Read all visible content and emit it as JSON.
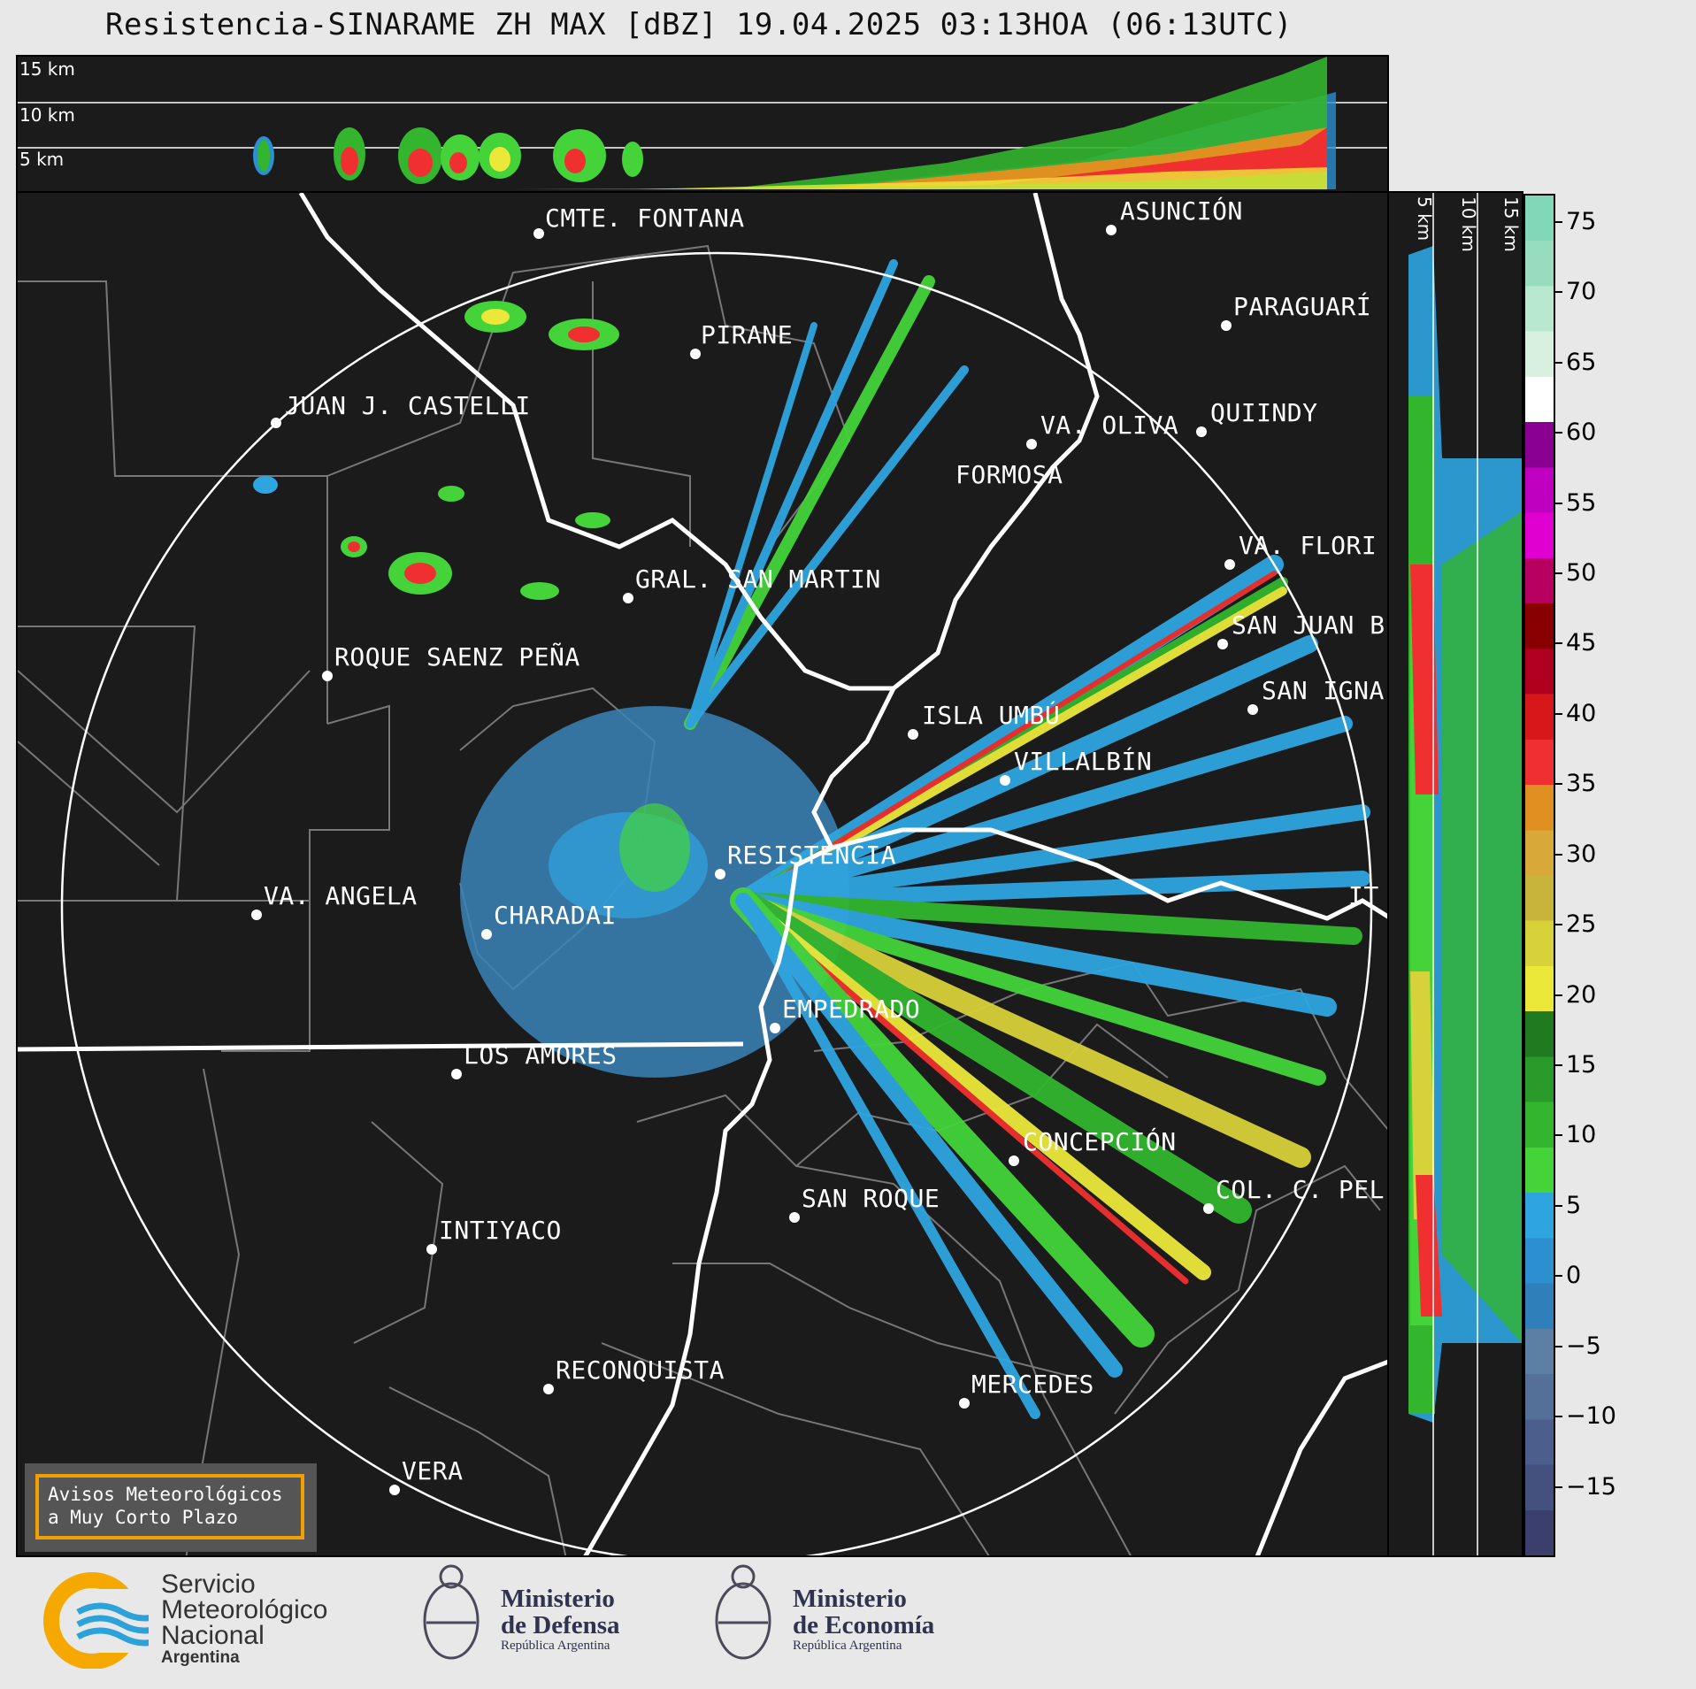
{
  "title": "Resistencia-SINARAME ZH MAX [dBZ] 19.04.2025 03:13HOA (06:13UTC)",
  "top_panel": {
    "altitudes": [
      "15 km",
      "10 km",
      "5 km"
    ]
  },
  "side_panel": {
    "altitudes": [
      "5 km",
      "10 km",
      "15 km"
    ]
  },
  "cities": [
    {
      "name": "CMTE. FONTANA"
    },
    {
      "name": "ASUNCIÓN"
    },
    {
      "name": "PARAGUARÍ"
    },
    {
      "name": "PIRANE"
    },
    {
      "name": "JUAN J. CASTELLI"
    },
    {
      "name": "VA. OLIVA"
    },
    {
      "name": "QUIINDY"
    },
    {
      "name": "FORMOSA"
    },
    {
      "name": "VA. FLORI"
    },
    {
      "name": "GRAL. SAN MARTIN"
    },
    {
      "name": "SAN JUAN B"
    },
    {
      "name": "ROQUE SAENZ PEÑA"
    },
    {
      "name": "SAN IGNA"
    },
    {
      "name": "ISLA UMBÚ"
    },
    {
      "name": "VILLALBÍN"
    },
    {
      "name": "RESISTENCIA"
    },
    {
      "name": "VA. ANGELA"
    },
    {
      "name": "CHARADAI"
    },
    {
      "name": "IT"
    },
    {
      "name": "EMPEDRADO"
    },
    {
      "name": "LOS AMORES"
    },
    {
      "name": "CONCEPCIÓN"
    },
    {
      "name": "SAN ROQUE"
    },
    {
      "name": "COL. C. PEL"
    },
    {
      "name": "INTIYACO"
    },
    {
      "name": "RECONQUISTA"
    },
    {
      "name": "MERCEDES"
    },
    {
      "name": "VERA"
    }
  ],
  "colorbar": {
    "unit": "dBZ",
    "range": [
      -20,
      77
    ],
    "ticks": [
      "75",
      "70",
      "65",
      "60",
      "55",
      "50",
      "45",
      "40",
      "35",
      "30",
      "25",
      "20",
      "15",
      "10",
      "5",
      "0",
      "−5",
      "−10",
      "−15"
    ],
    "colors": [
      "#3b3f6b",
      "#44507d",
      "#4c5f8c",
      "#546f98",
      "#5c80a4",
      "#2f7fba",
      "#2b8fd0",
      "#2fa5e0",
      "#44d43a",
      "#33b52e",
      "#2a9a2a",
      "#1f7a20",
      "#ece83a",
      "#d7d13a",
      "#c8b43a",
      "#d8a838",
      "#e09020",
      "#f03030",
      "#d81818",
      "#b00020",
      "#880000",
      "#b80060",
      "#e000d0",
      "#c000c0",
      "#8a0090",
      "#ffffff",
      "#d8f0e0",
      "#b8e8d0",
      "#98dcc0",
      "#80d8b8"
    ]
  },
  "warning_box": {
    "line1": "Avisos Meteorológicos",
    "line2": "a Muy Corto Plazo"
  },
  "logos": {
    "smn": {
      "line1": "Servicio",
      "line2": "Meteorológico",
      "line3": "Nacional",
      "line4": "Argentina"
    },
    "defensa": {
      "line1": "Ministerio",
      "line2": "de Defensa",
      "line3": "República Argentina"
    },
    "economia": {
      "line1": "Ministerio",
      "line2": "de Economía",
      "line3": "República Argentina"
    }
  }
}
